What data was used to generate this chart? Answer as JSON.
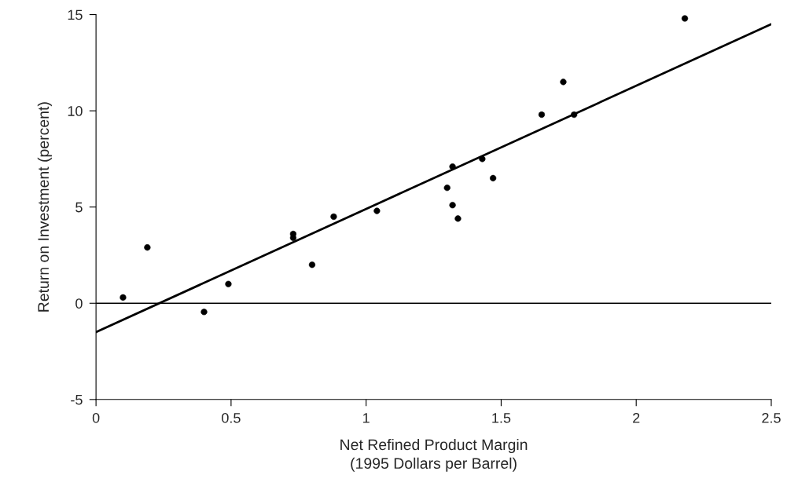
{
  "chart_data": {
    "type": "scatter",
    "xlabel": "Net Refined Product Margin\n(1995 Dollars per Barrel)",
    "ylabel": "Return on Investment (percent)",
    "xlim": [
      0,
      2.5
    ],
    "ylim": [
      -5,
      15
    ],
    "xticks": [
      0,
      0.5,
      1,
      1.5,
      2,
      2.5
    ],
    "yticks": [
      -5,
      0,
      5,
      10,
      15
    ],
    "grid": false,
    "series": [
      {
        "color": "#000000",
        "marker": "circle",
        "x": [
          0.1,
          0.19,
          0.4,
          0.49,
          0.73,
          0.73,
          0.8,
          0.88,
          1.04,
          1.3,
          1.32,
          1.32,
          1.34,
          1.43,
          1.47,
          1.65,
          1.73,
          1.77,
          2.18
        ],
        "values": [
          0.3,
          2.9,
          -0.45,
          1.0,
          3.6,
          3.4,
          2.0,
          4.5,
          4.8,
          6.0,
          7.1,
          5.1,
          4.4,
          7.5,
          6.5,
          9.8,
          11.5,
          9.8,
          14.8
        ]
      },
      {
        "type": "line",
        "color": "#000000",
        "x": [
          0,
          2.5
        ],
        "values": [
          -1.5,
          14.5
        ],
        "line_style": "solid"
      }
    ],
    "ref_lines": [
      {
        "axis": "y",
        "value": 0,
        "color": "#000000"
      }
    ]
  }
}
